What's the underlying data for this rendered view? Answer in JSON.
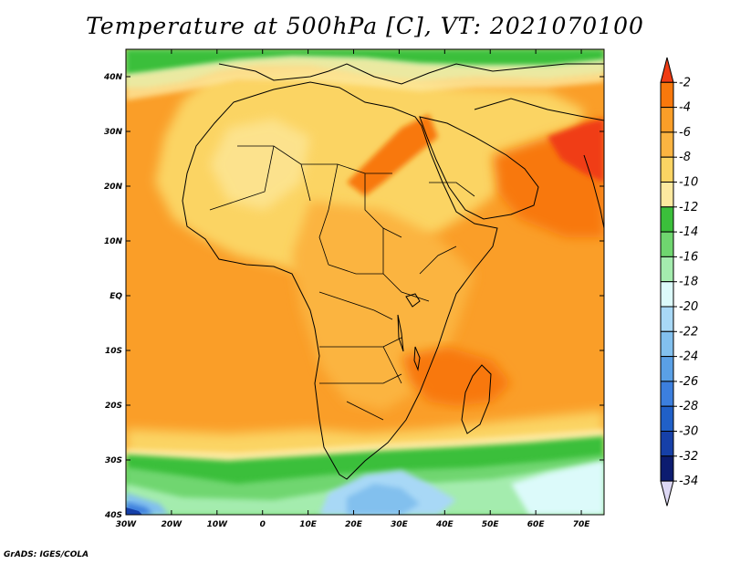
{
  "title": "Temperature at 500hPa [C], VT: 2021070100",
  "footer": "GrADS: IGES/COLA",
  "axes": {
    "lat_labels": [
      "40N",
      "30N",
      "20N",
      "10N",
      "EQ",
      "10S",
      "20S",
      "30S",
      "40S"
    ],
    "lat_values": [
      40,
      30,
      20,
      10,
      0,
      -10,
      -20,
      -30,
      -40
    ],
    "lon_labels": [
      "30W",
      "20W",
      "10W",
      "0",
      "10E",
      "20E",
      "30E",
      "40E",
      "50E",
      "60E",
      "70E"
    ],
    "lon_values": [
      -30,
      -20,
      -10,
      0,
      10,
      20,
      30,
      40,
      50,
      60,
      70
    ],
    "lat_range": [
      -40,
      45
    ],
    "lon_range": [
      -30,
      75
    ]
  },
  "colorbar": {
    "labels": [
      "-2",
      "-4",
      "-6",
      "-8",
      "-10",
      "-12",
      "-14",
      "-16",
      "-18",
      "-20",
      "-22",
      "-24",
      "-26",
      "-28",
      "-30",
      "-32",
      "-34"
    ],
    "colors": [
      "#f03c14",
      "#f8780c",
      "#fa9e28",
      "#fbb441",
      "#fbd463",
      "#fde99f",
      "#3bbf3b",
      "#6fd66f",
      "#a4ecae",
      "#dcfafa",
      "#a8d8f6",
      "#82c0ee",
      "#5aa0e6",
      "#3c7fde",
      "#2060c8",
      "#1640a8",
      "#0c1c70",
      "#ddd8f4"
    ]
  },
  "field": {
    "regions": [
      {
        "name": "north-green",
        "color": "#3bbf3b"
      },
      {
        "name": "north-lightgreen",
        "color": "#6fd66f"
      },
      {
        "name": "saharan-heat",
        "color": "#f8780c"
      },
      {
        "name": "arabian-heat",
        "color": "#f03c14"
      },
      {
        "name": "ocean-orange",
        "color": "#fa9e28"
      },
      {
        "name": "land-yellow",
        "color": "#fbd463"
      },
      {
        "name": "south-green",
        "color": "#3bbf3b"
      },
      {
        "name": "south-lightblue",
        "color": "#a8d8f6"
      },
      {
        "name": "south-cyan",
        "color": "#dcfafa"
      },
      {
        "name": "south-deep-blue",
        "color": "#3c7fde"
      }
    ]
  }
}
